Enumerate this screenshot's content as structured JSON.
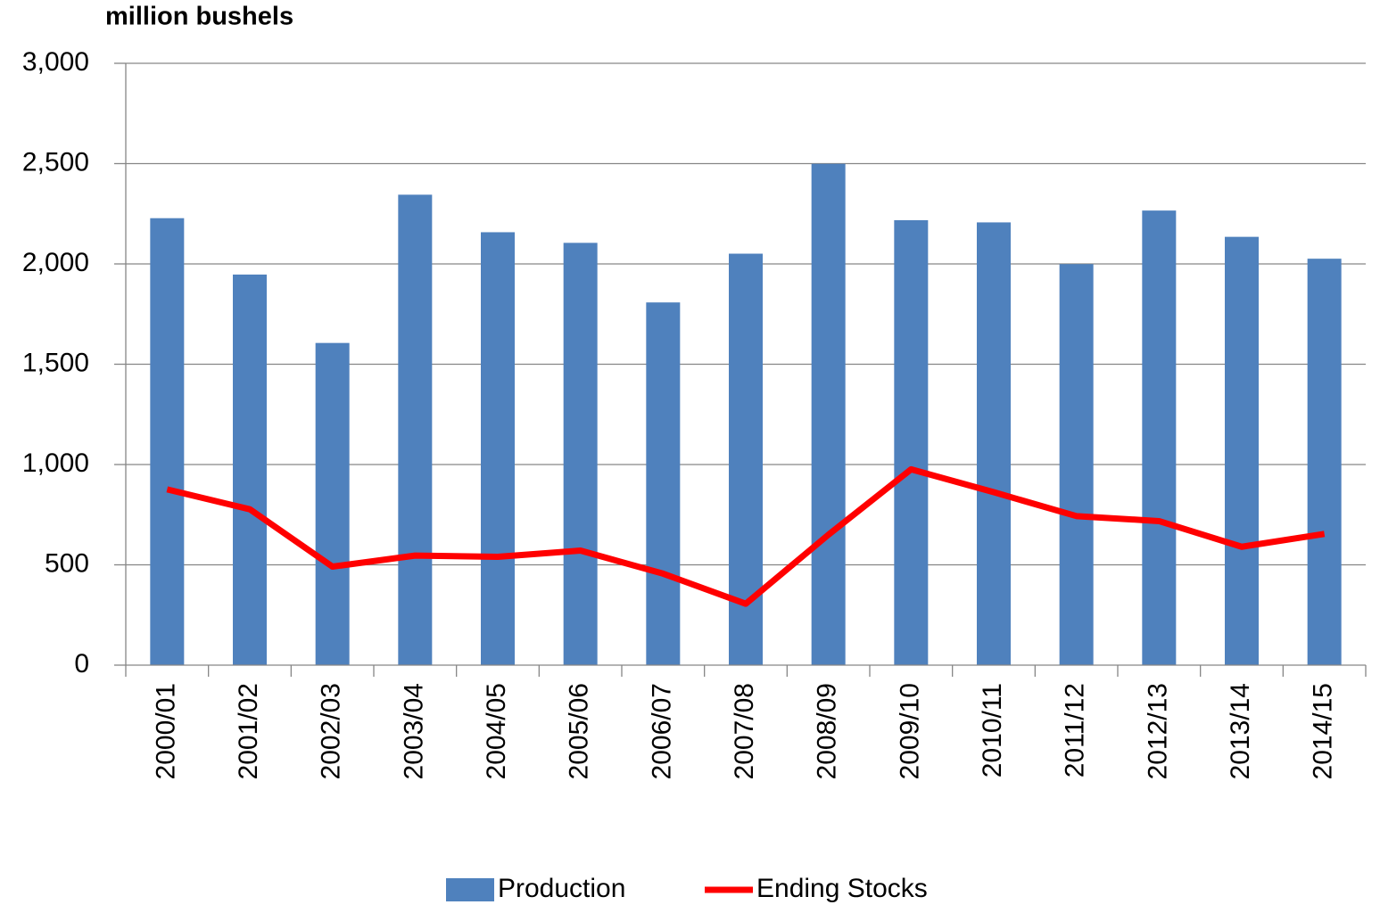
{
  "chart_data": {
    "type": "bar_line",
    "y_axis_label": "million bushels",
    "categories": [
      "2000/01",
      "2001/02",
      "2002/03",
      "2003/04",
      "2004/05",
      "2005/06",
      "2006/07",
      "2007/08",
      "2008/09",
      "2009/10",
      "2010/11",
      "2011/12",
      "2012/13",
      "2013/14",
      "2014/15"
    ],
    "series": [
      {
        "name": "Production",
        "type": "bar",
        "color": "#4f81bd",
        "values": [
          2228,
          1947,
          1606,
          2345,
          2158,
          2105,
          1808,
          2051,
          2499,
          2218,
          2207,
          1999,
          2266,
          2135,
          2026
        ]
      },
      {
        "name": "Ending Stocks",
        "type": "line",
        "color": "#ff0000",
        "values": [
          876,
          777,
          491,
          546,
          540,
          571,
          456,
          306,
          650,
          976,
          862,
          743,
          718,
          590,
          654
        ]
      }
    ],
    "ylim": [
      0,
      3000
    ],
    "yticks": [
      0,
      500,
      {
        "value": 1000,
        "label": "1,000"
      },
      {
        "value": 1500,
        "label": "1,500"
      },
      {
        "value": 2000,
        "label": "2,000"
      },
      {
        "value": 2500,
        "label": "2,500"
      },
      {
        "value": 3000,
        "label": "3,000"
      }
    ],
    "grid": true,
    "legend": "bottom"
  }
}
